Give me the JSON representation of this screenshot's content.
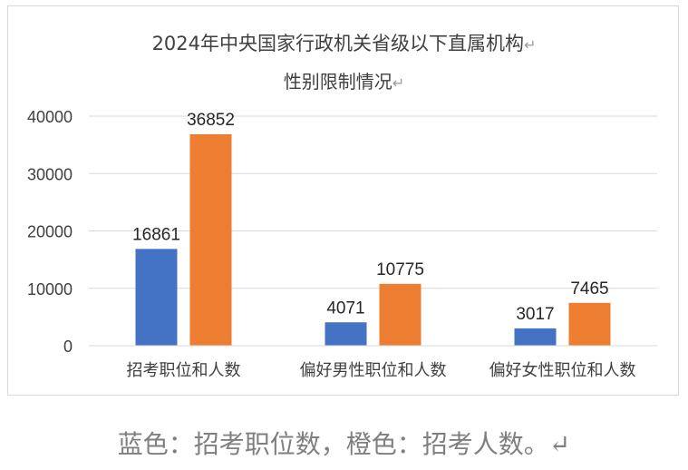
{
  "chart_data": {
    "type": "bar",
    "title": "2024年中央国家行政机关省级以下直属机构",
    "subtitle": "性别限制情况",
    "categories": [
      "招考职位和人数",
      "偏好男性职位和人数",
      "偏好女性职位和人数"
    ],
    "series": [
      {
        "values": [
          16861,
          4071,
          3017
        ],
        "color": "#4472C4"
      },
      {
        "values": [
          36852,
          10775,
          7465
        ],
        "color": "#ED7D31"
      }
    ],
    "y_ticks": [
      "0",
      "10000",
      "20000",
      "30000",
      "40000"
    ],
    "ylim": [
      0,
      40000
    ],
    "grid": true,
    "legend": "none"
  },
  "caption": "蓝色：招考职位数，橙色：招考人数。",
  "return_mark": "↵"
}
